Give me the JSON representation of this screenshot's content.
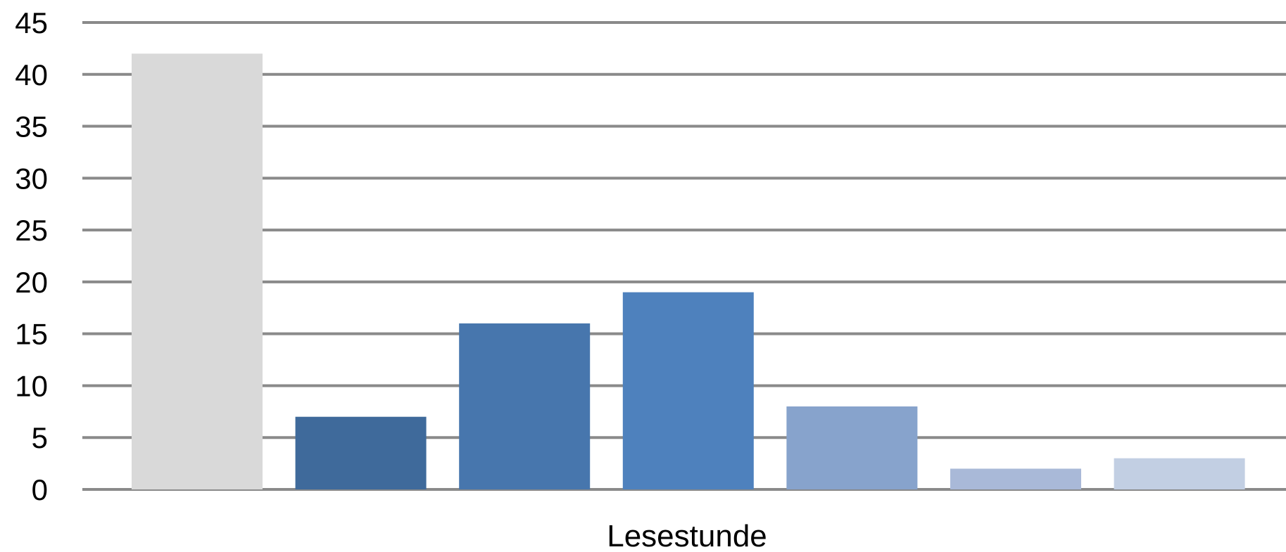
{
  "chart_data": {
    "type": "bar",
    "title": "",
    "xlabel": "Lesestunde",
    "ylabel": "",
    "ylim": [
      0,
      45
    ],
    "yticks": [
      0,
      5,
      10,
      15,
      20,
      25,
      30,
      35,
      40,
      45
    ],
    "grid": true,
    "legend": "none",
    "values": [
      42,
      7,
      16,
      19,
      8,
      2,
      3
    ],
    "colors": [
      "#d9d9d9",
      "#3f6a9b",
      "#4776ad",
      "#4e81bd",
      "#87a3cc",
      "#a9b9d8",
      "#c2cfe3"
    ],
    "grid_color": "#8a8a8a"
  }
}
